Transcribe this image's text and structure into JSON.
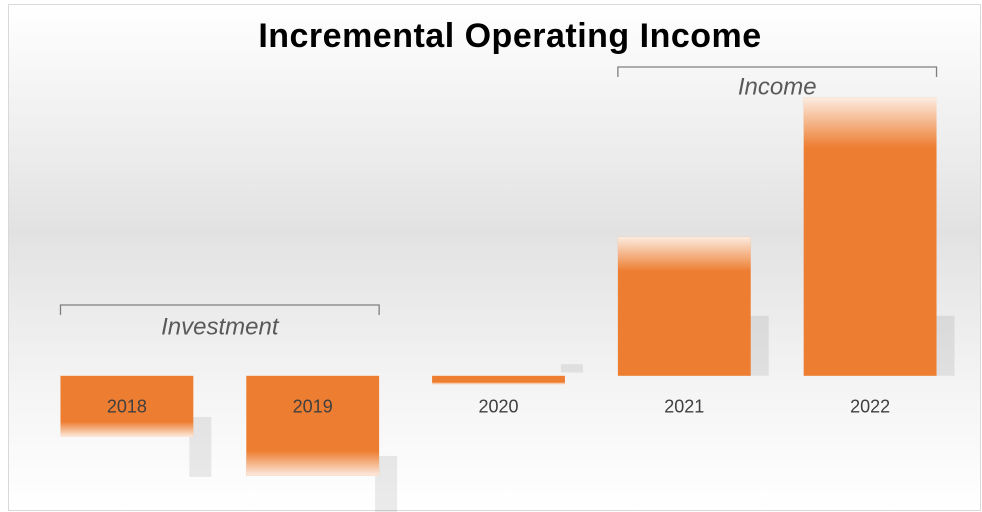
{
  "chart_data": {
    "type": "bar",
    "title": "Incremental Operating Income",
    "categories": [
      "2018",
      "2019",
      "2020",
      "2021",
      "2022"
    ],
    "values": [
      -22,
      -36,
      -3,
      50,
      100
    ],
    "color": "#ed7d31",
    "ylim": [
      -40,
      110
    ],
    "annotations": [
      {
        "text": "Investment"
      },
      {
        "text": "Income"
      }
    ]
  }
}
